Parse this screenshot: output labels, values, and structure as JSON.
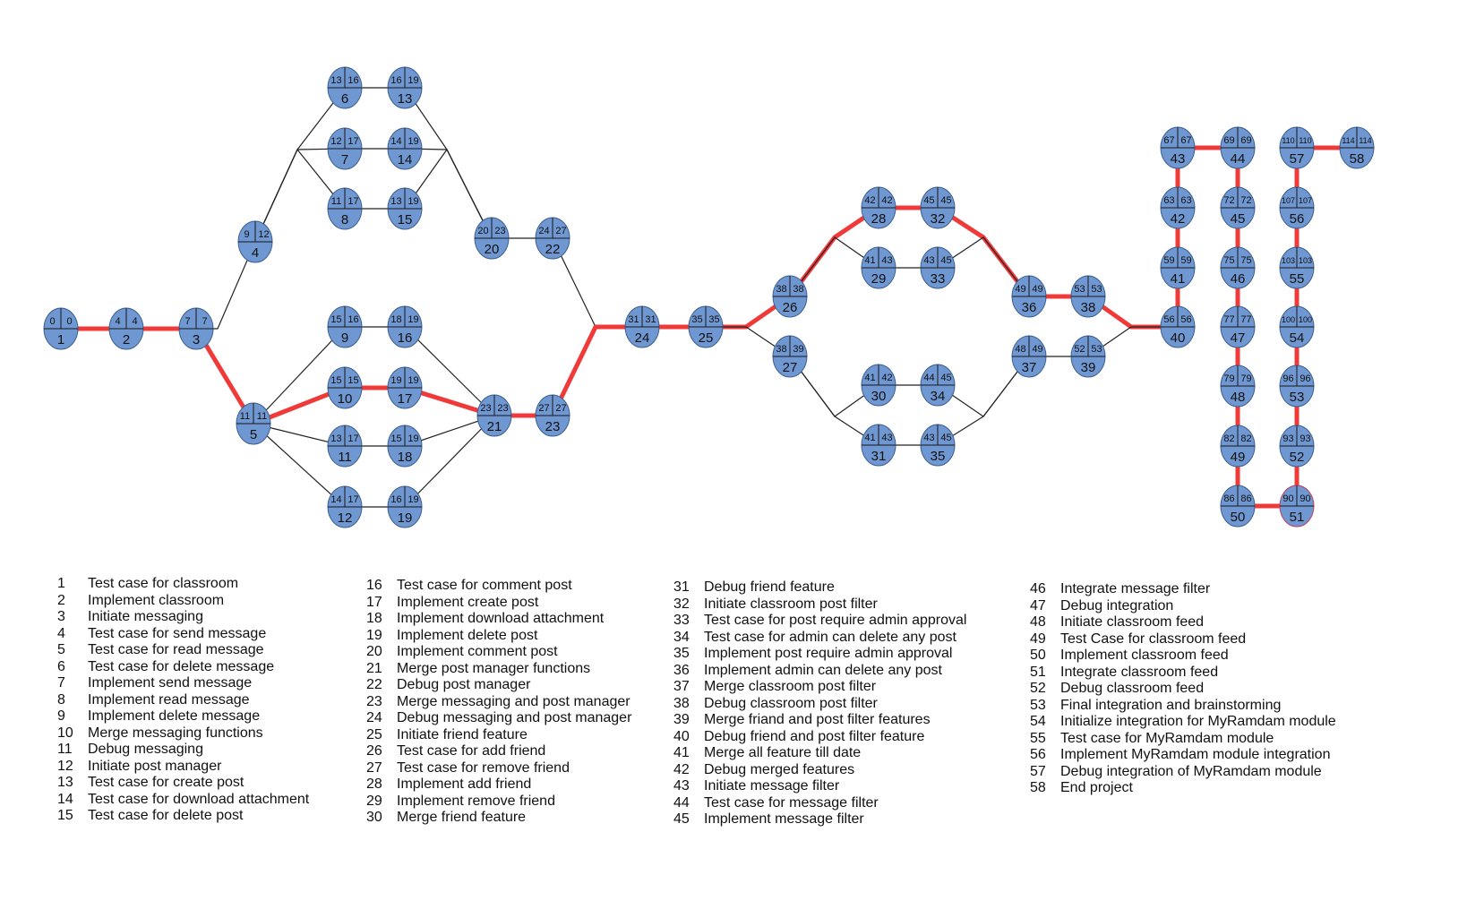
{
  "colors": {
    "node_fill": "#6f97d1",
    "node_stroke": "#3d5f8f",
    "critical_edge": "#f03a3a",
    "normal_edge": "#222222",
    "highlight_node_stroke": "#c0405a"
  },
  "nodes": [
    {
      "id": "1",
      "es": "0",
      "lf": "0"
    },
    {
      "id": "2",
      "es": "4",
      "lf": "4"
    },
    {
      "id": "3",
      "es": "7",
      "lf": "7"
    },
    {
      "id": "4",
      "es": "9",
      "lf": "12"
    },
    {
      "id": "5",
      "es": "11",
      "lf": "11"
    },
    {
      "id": "6",
      "es": "13",
      "lf": "16"
    },
    {
      "id": "13",
      "es": "16",
      "lf": "19"
    },
    {
      "id": "7",
      "es": "12",
      "lf": "17"
    },
    {
      "id": "14",
      "es": "14",
      "lf": "19"
    },
    {
      "id": "8",
      "es": "11",
      "lf": "17"
    },
    {
      "id": "15",
      "es": "13",
      "lf": "19"
    },
    {
      "id": "20",
      "es": "20",
      "lf": "23"
    },
    {
      "id": "22",
      "es": "24",
      "lf": "27"
    },
    {
      "id": "9",
      "es": "15",
      "lf": "16"
    },
    {
      "id": "16",
      "es": "18",
      "lf": "19"
    },
    {
      "id": "10",
      "es": "15",
      "lf": "15"
    },
    {
      "id": "17",
      "es": "19",
      "lf": "19"
    },
    {
      "id": "11",
      "es": "13",
      "lf": "17"
    },
    {
      "id": "18",
      "es": "15",
      "lf": "19"
    },
    {
      "id": "12",
      "es": "14",
      "lf": "17"
    },
    {
      "id": "19",
      "es": "16",
      "lf": "19"
    },
    {
      "id": "21",
      "es": "23",
      "lf": "23"
    },
    {
      "id": "23",
      "es": "27",
      "lf": "27"
    },
    {
      "id": "24",
      "es": "31",
      "lf": "31"
    },
    {
      "id": "25",
      "es": "35",
      "lf": "35"
    },
    {
      "id": "26",
      "es": "38",
      "lf": "38"
    },
    {
      "id": "27",
      "es": "38",
      "lf": "39"
    },
    {
      "id": "28",
      "es": "42",
      "lf": "42"
    },
    {
      "id": "32",
      "es": "45",
      "lf": "45"
    },
    {
      "id": "29",
      "es": "41",
      "lf": "43"
    },
    {
      "id": "33",
      "es": "43",
      "lf": "45"
    },
    {
      "id": "30",
      "es": "41",
      "lf": "42"
    },
    {
      "id": "34",
      "es": "44",
      "lf": "45"
    },
    {
      "id": "31",
      "es": "41",
      "lf": "43"
    },
    {
      "id": "35",
      "es": "43",
      "lf": "45"
    },
    {
      "id": "36",
      "es": "49",
      "lf": "49"
    },
    {
      "id": "38",
      "es": "53",
      "lf": "53"
    },
    {
      "id": "37",
      "es": "48",
      "lf": "49"
    },
    {
      "id": "39",
      "es": "52",
      "lf": "53"
    },
    {
      "id": "40",
      "es": "56",
      "lf": "56"
    },
    {
      "id": "41",
      "es": "59",
      "lf": "59"
    },
    {
      "id": "42",
      "es": "63",
      "lf": "63"
    },
    {
      "id": "43",
      "es": "67",
      "lf": "67"
    },
    {
      "id": "44",
      "es": "69",
      "lf": "69"
    },
    {
      "id": "45",
      "es": "72",
      "lf": "72"
    },
    {
      "id": "46",
      "es": "75",
      "lf": "75"
    },
    {
      "id": "47",
      "es": "77",
      "lf": "77"
    },
    {
      "id": "48",
      "es": "79",
      "lf": "79"
    },
    {
      "id": "49",
      "es": "82",
      "lf": "82"
    },
    {
      "id": "50",
      "es": "86",
      "lf": "86"
    },
    {
      "id": "51",
      "es": "90",
      "lf": "90"
    },
    {
      "id": "52",
      "es": "93",
      "lf": "93"
    },
    {
      "id": "53",
      "es": "96",
      "lf": "96"
    },
    {
      "id": "54",
      "es": "100",
      "lf": "100"
    },
    {
      "id": "55",
      "es": "103",
      "lf": "103"
    },
    {
      "id": "56",
      "es": "107",
      "lf": "107"
    },
    {
      "id": "57",
      "es": "110",
      "lf": "110"
    },
    {
      "id": "58",
      "es": "114",
      "lf": "114"
    }
  ],
  "edges": [
    {
      "from": "1",
      "to": "2",
      "critical": true
    },
    {
      "from": "2",
      "to": "3",
      "critical": true
    },
    {
      "from": "3",
      "to": "4",
      "critical": false
    },
    {
      "from": "3",
      "to": "5",
      "critical": true
    },
    {
      "from": "4",
      "to": "6",
      "critical": false
    },
    {
      "from": "4",
      "to": "7",
      "critical": false
    },
    {
      "from": "4",
      "to": "8",
      "critical": false
    },
    {
      "from": "6",
      "to": "13",
      "critical": false
    },
    {
      "from": "7",
      "to": "14",
      "critical": false
    },
    {
      "from": "8",
      "to": "15",
      "critical": false
    },
    {
      "from": "13",
      "to": "20",
      "critical": false
    },
    {
      "from": "14",
      "to": "20",
      "critical": false
    },
    {
      "from": "15",
      "to": "20",
      "critical": false
    },
    {
      "from": "20",
      "to": "22",
      "critical": false
    },
    {
      "from": "22",
      "to": "24",
      "critical": false
    },
    {
      "from": "5",
      "to": "9",
      "critical": false
    },
    {
      "from": "5",
      "to": "10",
      "critical": true
    },
    {
      "from": "5",
      "to": "11",
      "critical": false
    },
    {
      "from": "5",
      "to": "12",
      "critical": false
    },
    {
      "from": "9",
      "to": "16",
      "critical": false
    },
    {
      "from": "10",
      "to": "17",
      "critical": true
    },
    {
      "from": "11",
      "to": "18",
      "critical": false
    },
    {
      "from": "12",
      "to": "19",
      "critical": false
    },
    {
      "from": "16",
      "to": "21",
      "critical": false
    },
    {
      "from": "17",
      "to": "21",
      "critical": true
    },
    {
      "from": "18",
      "to": "21",
      "critical": false
    },
    {
      "from": "19",
      "to": "21",
      "critical": false
    },
    {
      "from": "21",
      "to": "23",
      "critical": true
    },
    {
      "from": "23",
      "to": "24",
      "critical": true
    },
    {
      "from": "24",
      "to": "25",
      "critical": true
    },
    {
      "from": "25",
      "to": "26",
      "critical": true
    },
    {
      "from": "25",
      "to": "27",
      "critical": false
    },
    {
      "from": "26",
      "to": "28",
      "critical": true
    },
    {
      "from": "26",
      "to": "29",
      "critical": false
    },
    {
      "from": "28",
      "to": "32",
      "critical": true
    },
    {
      "from": "29",
      "to": "33",
      "critical": false
    },
    {
      "from": "32",
      "to": "36",
      "critical": true
    },
    {
      "from": "33",
      "to": "36",
      "critical": false
    },
    {
      "from": "27",
      "to": "30",
      "critical": false
    },
    {
      "from": "27",
      "to": "31",
      "critical": false
    },
    {
      "from": "30",
      "to": "34",
      "critical": false
    },
    {
      "from": "31",
      "to": "35",
      "critical": false
    },
    {
      "from": "34",
      "to": "37",
      "critical": false
    },
    {
      "from": "35",
      "to": "37",
      "critical": false
    },
    {
      "from": "36",
      "to": "38",
      "critical": true
    },
    {
      "from": "37",
      "to": "39",
      "critical": false
    },
    {
      "from": "38",
      "to": "40",
      "critical": true
    },
    {
      "from": "39",
      "to": "40",
      "critical": false
    },
    {
      "from": "40",
      "to": "41",
      "critical": true
    },
    {
      "from": "41",
      "to": "42",
      "critical": true
    },
    {
      "from": "42",
      "to": "43",
      "critical": true
    },
    {
      "from": "43",
      "to": "44",
      "critical": true
    },
    {
      "from": "44",
      "to": "45",
      "critical": true
    },
    {
      "from": "45",
      "to": "46",
      "critical": true
    },
    {
      "from": "46",
      "to": "47",
      "critical": true
    },
    {
      "from": "47",
      "to": "48",
      "critical": true
    },
    {
      "from": "48",
      "to": "49",
      "critical": true
    },
    {
      "from": "49",
      "to": "50",
      "critical": true
    },
    {
      "from": "50",
      "to": "51",
      "critical": true
    },
    {
      "from": "51",
      "to": "52",
      "critical": true
    },
    {
      "from": "52",
      "to": "53",
      "critical": true
    },
    {
      "from": "53",
      "to": "54",
      "critical": true
    },
    {
      "from": "54",
      "to": "55",
      "critical": true
    },
    {
      "from": "55",
      "to": "56",
      "critical": true
    },
    {
      "from": "56",
      "to": "57",
      "critical": true
    },
    {
      "from": "57",
      "to": "58",
      "critical": true
    }
  ],
  "legend": {
    "columns": [
      [
        {
          "num": "1",
          "text": "Test case for classroom"
        },
        {
          "num": "2",
          "text": "Implement classroom"
        },
        {
          "num": "3",
          "text": "Initiate messaging"
        },
        {
          "num": "4",
          "text": "Test case for send message"
        },
        {
          "num": "5",
          "text": "Test case for read message"
        },
        {
          "num": "6",
          "text": "Test case for delete message"
        },
        {
          "num": "7",
          "text": "Implement send message"
        },
        {
          "num": "8",
          "text": "Implement read message"
        },
        {
          "num": "9",
          "text": "Implement delete message"
        },
        {
          "num": "10",
          "text": "Merge messaging functions"
        },
        {
          "num": "11",
          "text": "Debug messaging"
        },
        {
          "num": "12",
          "text": "Initiate post manager"
        },
        {
          "num": "13",
          "text": "Test case for create post"
        },
        {
          "num": "14",
          "text": "Test case for download attachment"
        },
        {
          "num": "15",
          "text": "Test case for delete post"
        }
      ],
      [
        {
          "num": "16",
          "text": "Test case for comment post"
        },
        {
          "num": "17",
          "text": "Implement create post"
        },
        {
          "num": "18",
          "text": "Implement download attachment"
        },
        {
          "num": "19",
          "text": "Implement delete post"
        },
        {
          "num": "20",
          "text": "Implement comment post"
        },
        {
          "num": "21",
          "text": "Merge post manager functions"
        },
        {
          "num": "22",
          "text": "Debug post manager"
        },
        {
          "num": "23",
          "text": "Merge messaging and post manager"
        },
        {
          "num": "24",
          "text": "Debug messaging and post manager"
        },
        {
          "num": "25",
          "text": "Initiate friend feature"
        },
        {
          "num": "26",
          "text": "Test case for add friend"
        },
        {
          "num": "27",
          "text": "Test case for remove friend"
        },
        {
          "num": "28",
          "text": "Implement add friend"
        },
        {
          "num": "29",
          "text": "Implement remove friend"
        },
        {
          "num": "30",
          "text": "Merge friend feature"
        }
      ],
      [
        {
          "num": "31",
          "text": "Debug friend feature"
        },
        {
          "num": "32",
          "text": "Initiate classroom post filter"
        },
        {
          "num": "33",
          "text": "Test case for post require admin approval"
        },
        {
          "num": "34",
          "text": "Test case for admin can delete any post"
        },
        {
          "num": "35",
          "text": "Implement post require admin approval"
        },
        {
          "num": "36",
          "text": "Implement admin can delete any post"
        },
        {
          "num": "37",
          "text": "Merge classroom post filter"
        },
        {
          "num": "38",
          "text": "Debug classroom post filter"
        },
        {
          "num": "39",
          "text": "Merge friand and post filter features"
        },
        {
          "num": "40",
          "text": "Debug friend and post filter feature"
        },
        {
          "num": "41",
          "text": "Merge all feature till date"
        },
        {
          "num": "42",
          "text": "Debug merged features"
        },
        {
          "num": "43",
          "text": "Initiate message filter"
        },
        {
          "num": "44",
          "text": "Test case for message filter"
        },
        {
          "num": "45",
          "text": "Implement message filter"
        }
      ],
      [
        {
          "num": "46",
          "text": "Integrate message filter"
        },
        {
          "num": "47",
          "text": "Debug integration"
        },
        {
          "num": "48",
          "text": "Initiate classroom feed"
        },
        {
          "num": "49",
          "text": "Test Case for classroom feed"
        },
        {
          "num": "50",
          "text": "Implement classroom feed"
        },
        {
          "num": "51",
          "text": "Integrate classroom feed"
        },
        {
          "num": "52",
          "text": "Debug classroom feed"
        },
        {
          "num": "53",
          "text": "Final integration and brainstorming"
        },
        {
          "num": "54",
          "text": "Initialize integration for MyRamdam module"
        },
        {
          "num": "55",
          "text": "Test case for MyRamdam module"
        },
        {
          "num": "56",
          "text": "Implement MyRamdam module integration"
        },
        {
          "num": "57",
          "text": "Debug integration of MyRamdam module"
        },
        {
          "num": "58",
          "text": "End project"
        }
      ]
    ]
  }
}
